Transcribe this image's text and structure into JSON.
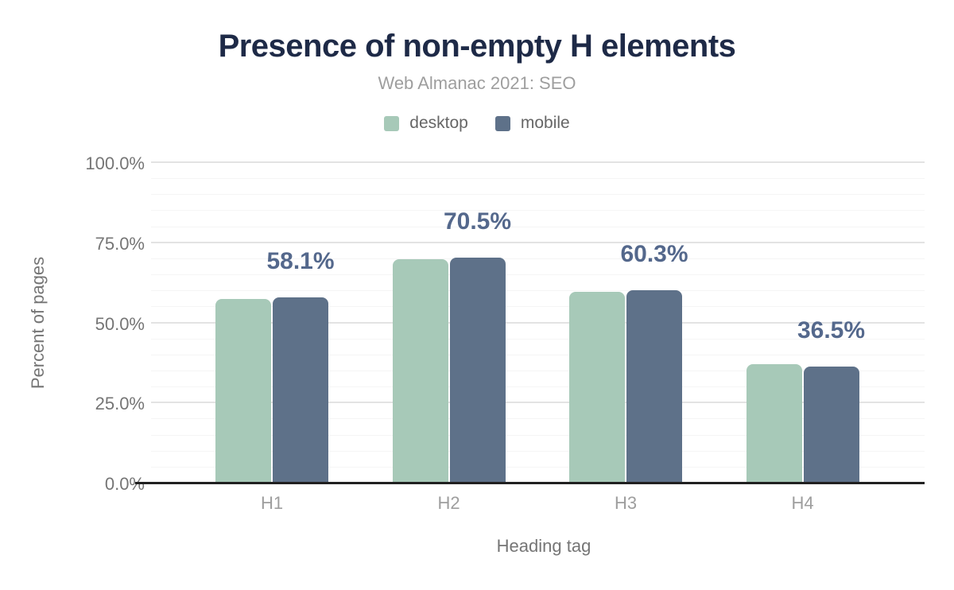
{
  "header": {
    "title": "Presence of non-empty H elements",
    "subtitle": "Web Almanac 2021: SEO"
  },
  "chart_data": {
    "type": "bar",
    "title": "Presence of non-empty H elements",
    "subtitle": "Web Almanac 2021: SEO",
    "categories": [
      "H1",
      "H2",
      "H3",
      "H4"
    ],
    "series": [
      {
        "name": "desktop",
        "color": "#a7c9b8",
        "values": [
          57.5,
          70.1,
          59.9,
          37.3
        ]
      },
      {
        "name": "mobile",
        "color": "#5e7189",
        "values": [
          58.1,
          70.5,
          60.3,
          36.5
        ]
      }
    ],
    "bar_labels": {
      "series": "mobile",
      "text": [
        "58.1%",
        "70.5%",
        "60.3%",
        "36.5%"
      ]
    },
    "xlabel": "Heading tag",
    "ylabel": "Percent of pages",
    "y_ticks": [
      {
        "label": "100.0%",
        "value": 100
      },
      {
        "label": "75.0%",
        "value": 75
      },
      {
        "label": "50.0%",
        "value": 50
      },
      {
        "label": "25.0%",
        "value": 25
      },
      {
        "label": "0.0%",
        "value": 0
      }
    ],
    "ylim": [
      0,
      100
    ],
    "grid": {
      "major_step": 25,
      "minor_step": 5
    },
    "legend_position": "top"
  },
  "colors": {
    "title": "#1e2a47",
    "subtitle": "#9e9e9e",
    "axis_text": "#757575",
    "x_tick_text": "#9e9e9e",
    "bar_label": "#54688c",
    "axis_line": "#212121",
    "grid_major": "#e3e3e3",
    "grid_minor": "#f5f5f5",
    "desktop": "#a7c9b8",
    "mobile": "#5e7189"
  }
}
